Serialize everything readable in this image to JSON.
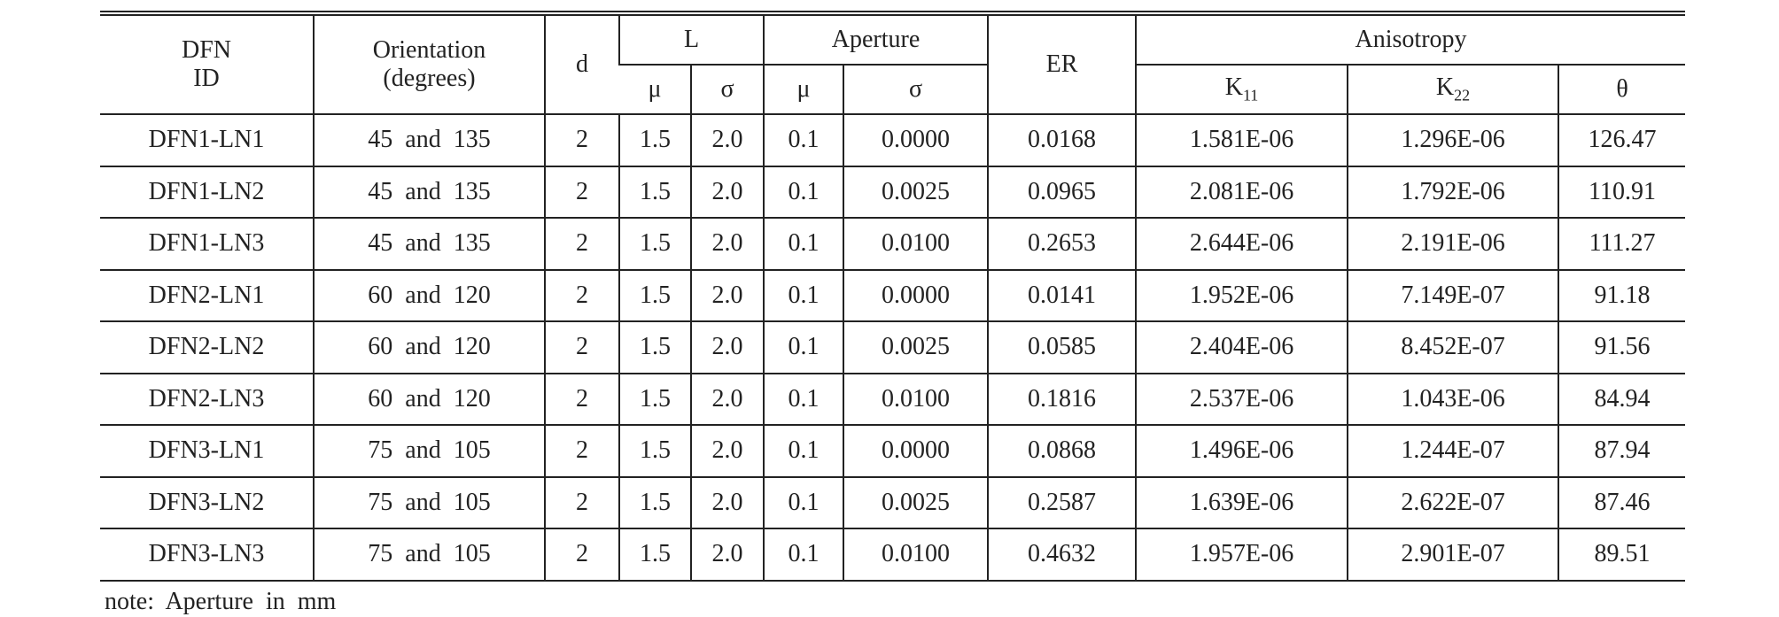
{
  "table": {
    "header_top": {
      "dfn_id": [
        "DFN",
        "ID"
      ],
      "orientation": [
        "Orientation",
        "(degrees)"
      ],
      "d": "d",
      "L": "L",
      "aperture": "Aperture",
      "er": "ER",
      "anisotropy": "Anisotropy"
    },
    "header_sub": {
      "l_mu": "μ",
      "l_sigma": "σ",
      "a_mu": "μ",
      "a_sigma": "σ",
      "k11": {
        "base": "K",
        "sub": "11"
      },
      "k22": {
        "base": "K",
        "sub": "22"
      },
      "theta": "θ"
    },
    "rows": [
      [
        "DFN1-LN1",
        "45  and  135",
        "2",
        "1.5",
        "2.0",
        "0.1",
        "0.0000",
        "0.0168",
        "1.581E-06",
        "1.296E-06",
        "126.47"
      ],
      [
        "DFN1-LN2",
        "45  and  135",
        "2",
        "1.5",
        "2.0",
        "0.1",
        "0.0025",
        "0.0965",
        "2.081E-06",
        "1.792E-06",
        "110.91"
      ],
      [
        "DFN1-LN3",
        "45  and  135",
        "2",
        "1.5",
        "2.0",
        "0.1",
        "0.0100",
        "0.2653",
        "2.644E-06",
        "2.191E-06",
        "111.27"
      ],
      [
        "DFN2-LN1",
        "60  and  120",
        "2",
        "1.5",
        "2.0",
        "0.1",
        "0.0000",
        "0.0141",
        "1.952E-06",
        "7.149E-07",
        "91.18"
      ],
      [
        "DFN2-LN2",
        "60  and  120",
        "2",
        "1.5",
        "2.0",
        "0.1",
        "0.0025",
        "0.0585",
        "2.404E-06",
        "8.452E-07",
        "91.56"
      ],
      [
        "DFN2-LN3",
        "60  and  120",
        "2",
        "1.5",
        "2.0",
        "0.1",
        "0.0100",
        "0.1816",
        "2.537E-06",
        "1.043E-06",
        "84.94"
      ],
      [
        "DFN3-LN1",
        "75  and  105",
        "2",
        "1.5",
        "2.0",
        "0.1",
        "0.0000",
        "0.0868",
        "1.496E-06",
        "1.244E-07",
        "87.94"
      ],
      [
        "DFN3-LN2",
        "75  and  105",
        "2",
        "1.5",
        "2.0",
        "0.1",
        "0.0025",
        "0.2587",
        "1.639E-06",
        "2.622E-07",
        "87.46"
      ],
      [
        "DFN3-LN3",
        "75  and  105",
        "2",
        "1.5",
        "2.0",
        "0.1",
        "0.0100",
        "0.4632",
        "1.957E-06",
        "2.901E-07",
        "89.51"
      ]
    ]
  },
  "note": "note:  Aperture  in  mm"
}
